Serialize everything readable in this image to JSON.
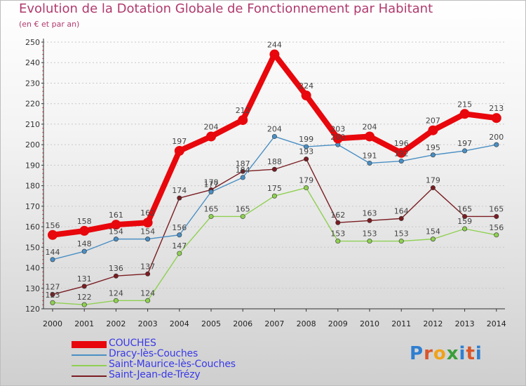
{
  "title": "Evolution de la Dotation Globale de Fonctionnement par Habitant",
  "subtitle": "(en € et par an)",
  "logo_text": "Proxiti",
  "chart_data": {
    "type": "line",
    "title": "Evolution de la Dotation Globale de Fonctionnement par Habitant",
    "subtitle": "(en € et par an)",
    "xlabel": "",
    "ylabel": "",
    "x": [
      2000,
      2001,
      2002,
      2003,
      2004,
      2005,
      2006,
      2007,
      2008,
      2009,
      2010,
      2011,
      2012,
      2013,
      2014
    ],
    "ylim": [
      120,
      250
    ],
    "yticks": [
      120,
      130,
      140,
      150,
      160,
      170,
      180,
      190,
      200,
      210,
      220,
      230,
      240,
      250
    ],
    "grid": "horizontal dotted",
    "legend": "bottom-left",
    "series": [
      {
        "name": "COUCHES",
        "color": "#e8070c",
        "values": [
          156,
          158,
          161,
          162,
          197,
          204,
          212,
          244,
          224,
          203,
          204,
          196,
          207,
          215,
          213
        ]
      },
      {
        "name": "Dracy-lès-Couches",
        "color": "#4a8fc4",
        "values": [
          144,
          148,
          154,
          154,
          156,
          177,
          184,
          204,
          199,
          200,
          191,
          192,
          195,
          197,
          200
        ]
      },
      {
        "name": "Saint-Maurice-lès-Couches",
        "color": "#8fd052",
        "values": [
          123,
          122,
          124,
          124,
          147,
          165,
          165,
          175,
          179,
          153,
          153,
          153,
          154,
          159,
          156
        ]
      },
      {
        "name": "Saint-Jean-de-Trézy",
        "color": "#7a1d22",
        "values": [
          127,
          131,
          136,
          137,
          174,
          178,
          187,
          188,
          193,
          162,
          163,
          164,
          179,
          165,
          165
        ]
      }
    ]
  }
}
